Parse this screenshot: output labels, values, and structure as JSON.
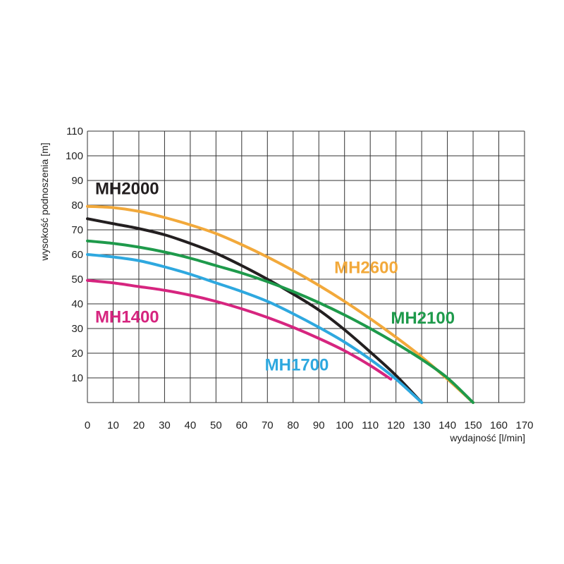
{
  "chart_data": {
    "type": "line",
    "xlabel": "wydajność [l/min]",
    "ylabel": "wysokość podnoszenia [m]",
    "xlim": [
      0,
      170
    ],
    "ylim": [
      0,
      110
    ],
    "xticks": [
      0,
      10,
      20,
      30,
      40,
      50,
      60,
      70,
      80,
      90,
      100,
      110,
      120,
      130,
      140,
      150,
      160,
      170
    ],
    "yticks": [
      10,
      20,
      30,
      40,
      50,
      60,
      70,
      80,
      90,
      100,
      110
    ],
    "grid": true,
    "series": [
      {
        "name": "MH2600",
        "color": "#F2A93B",
        "x": [
          0,
          10,
          20,
          30,
          40,
          50,
          60,
          70,
          80,
          90,
          100,
          110,
          120,
          130,
          140,
          150
        ],
        "y": [
          79.5,
          79,
          77.5,
          75,
          72,
          68.5,
          64,
          59,
          53.5,
          47.5,
          41,
          34,
          26.5,
          18.5,
          9.5,
          0
        ]
      },
      {
        "name": "MH2000",
        "color": "#231F20",
        "x": [
          0,
          10,
          20,
          30,
          40,
          50,
          60,
          70,
          80,
          90,
          100,
          110,
          120,
          130
        ],
        "y": [
          74.5,
          72.5,
          70.5,
          68,
          64.5,
          60.5,
          55.5,
          50,
          44,
          37.5,
          29.5,
          20.5,
          11,
          0
        ]
      },
      {
        "name": "MH2100",
        "color": "#1E9A4B",
        "x": [
          0,
          10,
          20,
          30,
          40,
          50,
          60,
          70,
          80,
          90,
          100,
          110,
          120,
          130,
          140,
          150
        ],
        "y": [
          65.5,
          64.5,
          63,
          61,
          58.5,
          55.5,
          52.5,
          49,
          45,
          40.5,
          35.5,
          30,
          24,
          17.5,
          10,
          0
        ]
      },
      {
        "name": "MH1700",
        "color": "#2EA8DF",
        "x": [
          0,
          10,
          20,
          30,
          40,
          50,
          60,
          70,
          80,
          90,
          100,
          110,
          120,
          130
        ],
        "y": [
          60,
          59,
          57.5,
          55,
          52,
          48.5,
          45,
          41,
          36,
          30.5,
          24.5,
          17.5,
          9.5,
          0
        ]
      },
      {
        "name": "MH1400",
        "color": "#D6257F",
        "x": [
          0,
          10,
          20,
          30,
          40,
          50,
          60,
          70,
          80,
          90,
          100,
          110,
          118
        ],
        "y": [
          49.5,
          48.5,
          47,
          45.5,
          43.5,
          41,
          38,
          34.5,
          30.5,
          26,
          21,
          15,
          9.5
        ]
      }
    ]
  }
}
